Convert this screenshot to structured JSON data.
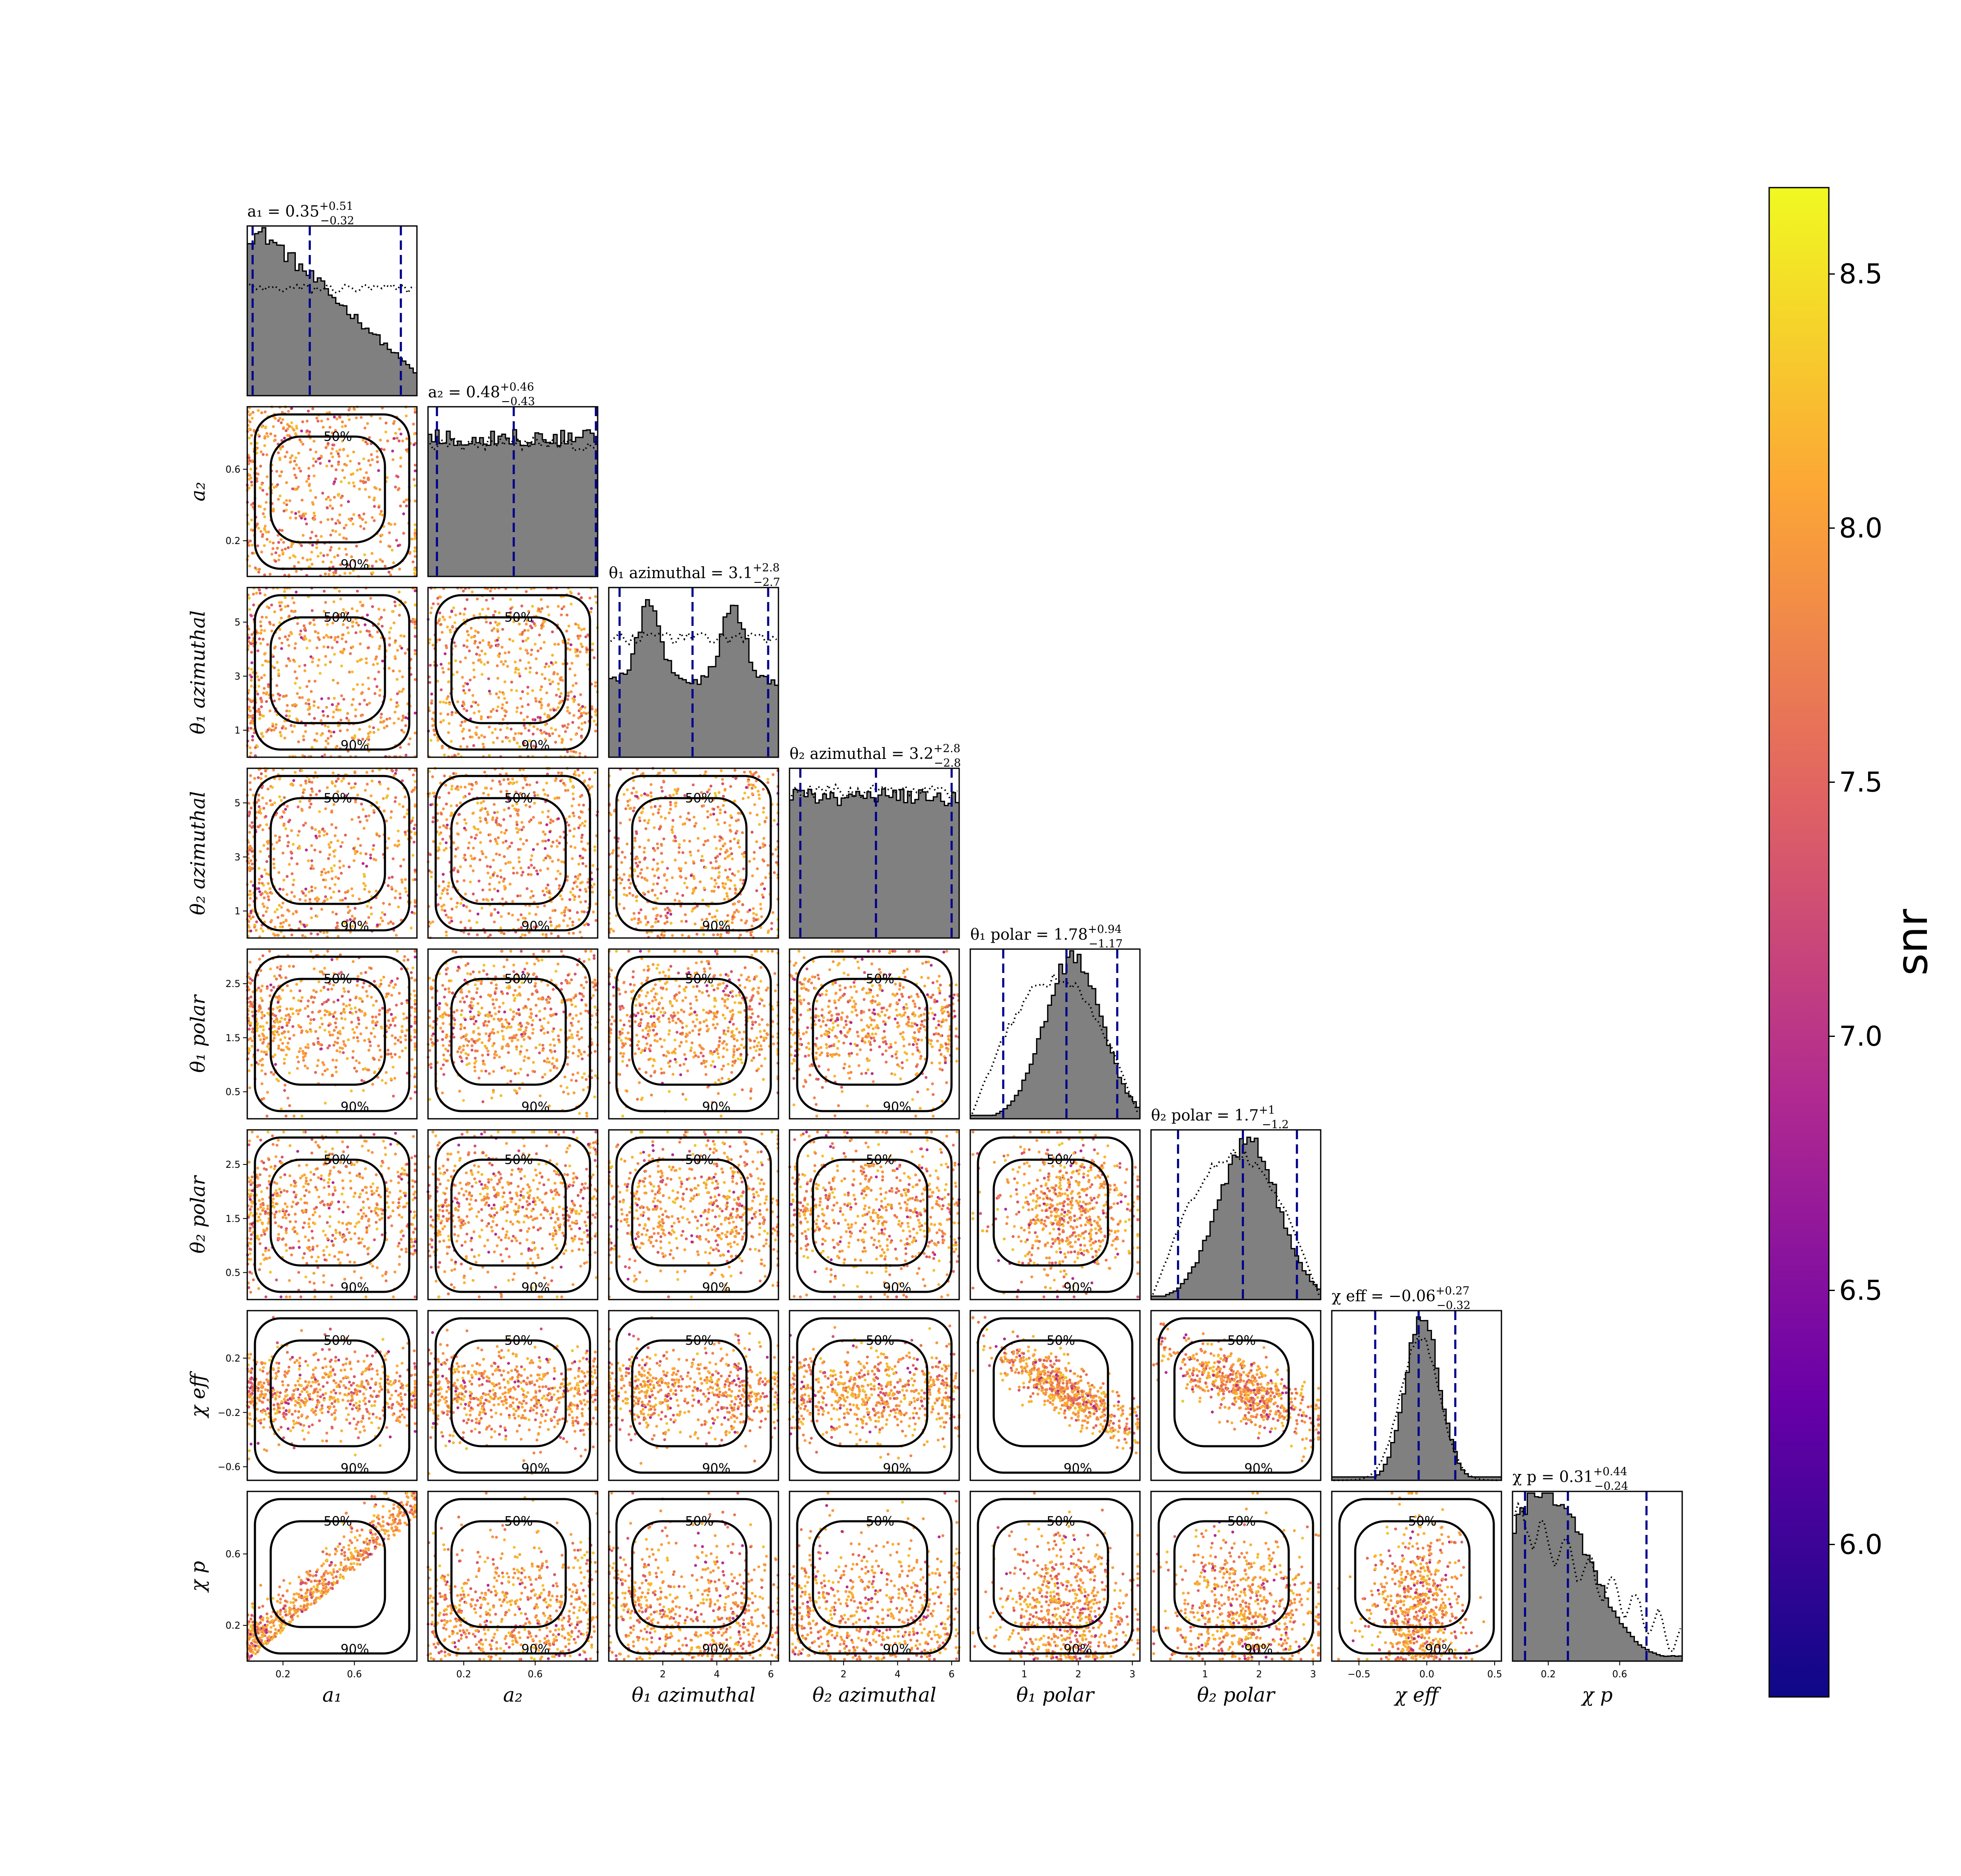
{
  "chart_data": {
    "type": "scatter",
    "kind": "corner plot (posterior samples colored by snr)",
    "parameters": [
      {
        "key": "a1",
        "label": "a₁",
        "range": [
          0,
          0.95
        ],
        "ticks": [
          0.2,
          0.6
        ],
        "tick_labels": [
          "0.2",
          "0.6"
        ],
        "title_prefix": "a₁ = 0.35",
        "title_plus": "+0.51",
        "title_minus": "−0.32",
        "median": 0.35,
        "lower": 0.03,
        "upper": 0.86
      },
      {
        "key": "a2",
        "label": "a₂",
        "range": [
          0,
          0.95
        ],
        "ticks": [
          0.2,
          0.6
        ],
        "tick_labels": [
          "0.2",
          "0.6"
        ],
        "title_prefix": "a₂ = 0.48",
        "title_plus": "+0.46",
        "title_minus": "−0.43",
        "median": 0.48,
        "lower": 0.05,
        "upper": 0.94
      },
      {
        "key": "t1az",
        "label": "θ₁ azimuthal",
        "range": [
          0,
          6.28
        ],
        "ticks": [
          2,
          4,
          6
        ],
        "tick_labels": [
          "2",
          "4",
          "6"
        ],
        "title_prefix": "θ₁ azimuthal = 3.1",
        "title_plus": "+2.8",
        "title_minus": "−2.7",
        "median": 3.1,
        "lower": 0.4,
        "upper": 5.9
      },
      {
        "key": "t2az",
        "label": "θ₂ azimuthal",
        "range": [
          0,
          6.28
        ],
        "ticks": [
          2,
          4,
          6
        ],
        "tick_labels": [
          "2",
          "4",
          "6"
        ],
        "title_prefix": "θ₂ azimuthal = 3.2",
        "title_plus": "+2.8",
        "title_minus": "−2.8",
        "median": 3.2,
        "lower": 0.4,
        "upper": 6.0
      },
      {
        "key": "t1pol",
        "label": "θ₁ polar",
        "range": [
          0,
          3.14
        ],
        "ticks": [
          1,
          2,
          3
        ],
        "tick_labels": [
          "1",
          "2",
          "3"
        ],
        "title_prefix": "θ₁ polar = 1.78",
        "title_plus": "+0.94",
        "title_minus": "−1.17",
        "median": 1.78,
        "lower": 0.61,
        "upper": 2.72
      },
      {
        "key": "t2pol",
        "label": "θ₂ polar",
        "range": [
          0,
          3.14
        ],
        "ticks": [
          1,
          2,
          3
        ],
        "tick_labels": [
          "1",
          "2",
          "3"
        ],
        "title_prefix": "θ₂ polar = 1.7",
        "title_plus": "+1",
        "title_minus": "−1.2",
        "median": 1.7,
        "lower": 0.5,
        "upper": 2.7
      },
      {
        "key": "chieff",
        "label": "χ eff",
        "range": [
          -0.7,
          0.55
        ],
        "ticks": [
          -0.5,
          0.0,
          0.5
        ],
        "tick_labels": [
          "−0.5",
          "0.0",
          "0.5"
        ],
        "title_prefix": "χ eff = −0.06",
        "title_plus": "+0.27",
        "title_minus": "−0.32",
        "median": -0.06,
        "lower": -0.38,
        "upper": 0.21
      },
      {
        "key": "chip",
        "label": "χ p",
        "range": [
          0,
          0.95
        ],
        "ticks": [
          0.2,
          0.6
        ],
        "tick_labels": [
          "0.2",
          "0.6"
        ],
        "title_prefix": "χ p = 0.31",
        "title_plus": "+0.44",
        "title_minus": "−0.24",
        "median": 0.31,
        "lower": 0.07,
        "upper": 0.75
      }
    ],
    "y_ticks": {
      "a2": {
        "ticks": [
          0.2,
          0.6
        ],
        "labels": [
          "0.2",
          "0.6"
        ]
      },
      "t1az": {
        "ticks": [
          1,
          3,
          5
        ],
        "labels": [
          "1",
          "3",
          "5"
        ]
      },
      "t2az": {
        "ticks": [
          1,
          3,
          5
        ],
        "labels": [
          "1",
          "3",
          "5"
        ]
      },
      "t1pol": {
        "ticks": [
          0.5,
          1.5,
          2.5
        ],
        "labels": [
          "0.5",
          "1.5",
          "2.5"
        ]
      },
      "t2pol": {
        "ticks": [
          0.5,
          1.5,
          2.5
        ],
        "labels": [
          "0.5",
          "1.5",
          "2.5"
        ]
      },
      "chieff": {
        "ticks": [
          -0.6,
          -0.2,
          0.2
        ],
        "labels": [
          "−0.6",
          "−0.2",
          "0.2"
        ]
      },
      "chip": {
        "ticks": [
          0.2,
          0.6
        ],
        "labels": [
          "0.2",
          "0.6"
        ]
      }
    },
    "contour_levels": [
      "50%",
      "90%"
    ],
    "colorbar": {
      "label": "snr",
      "range": [
        5.7,
        8.67
      ],
      "ticks": [
        6.0,
        6.5,
        7.0,
        7.5,
        8.0,
        8.5
      ],
      "tick_labels": [
        "6.0",
        "6.5",
        "7.0",
        "7.5",
        "8.0",
        "8.5"
      ],
      "colormap": "plasma",
      "colors": [
        "#0d0887",
        "#6a00a8",
        "#b12a90",
        "#e16462",
        "#fca636",
        "#f0f921"
      ]
    },
    "histogram_color": "#808080",
    "quantile_line_color": "#00008b",
    "prior_line_style": "dotted"
  }
}
